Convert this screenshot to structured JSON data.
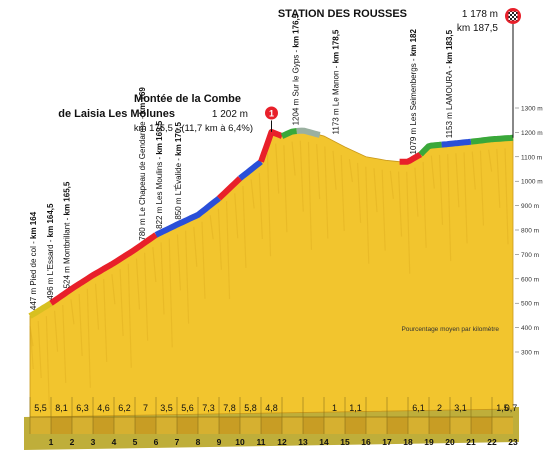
{
  "profile": {
    "start_point": {
      "x_km": 0.0,
      "elev_m": 447
    },
    "km_labels": [
      "1",
      "2",
      "3",
      "4",
      "5",
      "6",
      "7",
      "8",
      "9",
      "10",
      "11",
      "12",
      "13",
      "14",
      "15",
      "16",
      "17",
      "18",
      "19",
      "20",
      "21",
      "22",
      "23"
    ],
    "gradients": [
      "5,5",
      "8,1",
      "6,3",
      "4,6",
      "6,2",
      "7",
      "3,5",
      "5,6",
      "7,3",
      "7,8",
      "5,8",
      "4,8",
      "",
      "",
      "1",
      "1,1",
      "",
      "",
      "6,1",
      "2",
      "3,1",
      "",
      "1,5",
      "0,7"
    ],
    "elev_axis": {
      "values": [
        300,
        400,
        500,
        600,
        700,
        800,
        900,
        1000,
        1100,
        1200,
        1300
      ],
      "labels": [
        "300 m",
        "400 m",
        "500 m",
        "600 m",
        "700 m",
        "800 m",
        "900 m",
        "1000 m",
        "1100 m",
        "1200 m",
        "1300 m"
      ]
    },
    "points": [
      {
        "km": 0.0,
        "elev": 447
      },
      {
        "km": 1.0,
        "elev": 500
      },
      {
        "km": 2.0,
        "elev": 560
      },
      {
        "km": 3.0,
        "elev": 615
      },
      {
        "km": 4.0,
        "elev": 665
      },
      {
        "km": 5.0,
        "elev": 720
      },
      {
        "km": 6.0,
        "elev": 780
      },
      {
        "km": 7.0,
        "elev": 822
      },
      {
        "km": 8.0,
        "elev": 862
      },
      {
        "km": 9.0,
        "elev": 930
      },
      {
        "km": 10.0,
        "elev": 1012
      },
      {
        "km": 11.0,
        "elev": 1080
      },
      {
        "km": 11.5,
        "elev": 1202
      },
      {
        "km": 12.0,
        "elev": 1185
      },
      {
        "km": 12.5,
        "elev": 1204
      },
      {
        "km": 13.0,
        "elev": 1208
      },
      {
        "km": 14.0,
        "elev": 1185
      },
      {
        "km": 15.0,
        "elev": 1140
      },
      {
        "km": 16.0,
        "elev": 1100
      },
      {
        "km": 17.0,
        "elev": 1085
      },
      {
        "km": 17.6,
        "elev": 1080
      },
      {
        "km": 18.0,
        "elev": 1080
      },
      {
        "km": 18.6,
        "elev": 1110
      },
      {
        "km": 19.0,
        "elev": 1145
      },
      {
        "km": 20.0,
        "elev": 1153
      },
      {
        "km": 21.0,
        "elev": 1162
      },
      {
        "km": 22.0,
        "elev": 1172
      },
      {
        "km": 23.0,
        "elev": 1178
      }
    ],
    "ridge_segments": [
      {
        "from": 0.0,
        "to": 1.0,
        "color": "#d8c020"
      },
      {
        "from": 1.0,
        "to": 6.0,
        "color": "#e8202a"
      },
      {
        "from": 6.0,
        "to": 9.0,
        "color": "#2a4fd8"
      },
      {
        "from": 9.0,
        "to": 10.0,
        "color": "#e8202a"
      },
      {
        "from": 10.0,
        "to": 11.0,
        "color": "#2a4fd8"
      },
      {
        "from": 11.0,
        "to": 12.0,
        "color": "#e8202a"
      },
      {
        "from": 12.0,
        "to": 12.7,
        "color": "#3aa83a"
      },
      {
        "from": 12.7,
        "to": 13.8,
        "color": "#9ab0a0"
      },
      {
        "from": 17.6,
        "to": 18.6,
        "color": "#e8202a"
      },
      {
        "from": 18.6,
        "to": 19.6,
        "color": "#3aa83a"
      },
      {
        "from": 19.6,
        "to": 21.0,
        "color": "#2a4fd8"
      },
      {
        "from": 21.0,
        "to": 23.0,
        "color": "#3aa83a"
      }
    ],
    "legend_note": "Pourcentage moyen par kilomètre",
    "colors": {
      "fill": "#f2c52e",
      "fill_dark": "#d9a81c",
      "ground": "#bfae3a"
    }
  },
  "summit": {
    "title_line1": "Montée de la Combe",
    "title_line2": "de Laisia Les Molunes",
    "elev": "1 202 m",
    "km_line": "km 175,5 - (11,7 km à 6,4%)",
    "marker_icon": "category-1-climb-icon",
    "marker_color": "#e8202a",
    "km_pos": 11.5
  },
  "finish": {
    "title": "STATION DES ROUSSES",
    "elev": "1 178 m",
    "km": "km 187,5",
    "marker_icon": "checkered-flag-icon",
    "marker_color": "#e8202a",
    "km_pos": 23.0
  },
  "waypoints": [
    {
      "km_pos": 0.0,
      "elev_text": "447 m Pied de col -",
      "km_text": "km 164"
    },
    {
      "km_pos": 0.8,
      "elev_text": "496 m L'Essard -",
      "km_text": "km 164,5"
    },
    {
      "km_pos": 1.6,
      "elev_text": "524 m Montbrillant -",
      "km_text": "km 165,5"
    },
    {
      "km_pos": 5.2,
      "elev_text": "780 m Le Chapeau de Gendarme -",
      "km_text": "km 169"
    },
    {
      "km_pos": 6.0,
      "elev_text": "822 m Les Moulins -",
      "km_text": "km 169,5"
    },
    {
      "km_pos": 6.9,
      "elev_text": "850 m L'Évalide -",
      "km_text": "km 170,5"
    },
    {
      "km_pos": 12.5,
      "elev_text": "1204 m Sur le Gyps -",
      "km_text": "km 176,5"
    },
    {
      "km_pos": 14.4,
      "elev_text": "1173 m Le Manon -",
      "km_text": "km 178,5"
    },
    {
      "km_pos": 18.1,
      "elev_text": "1079 m Les Seimenbergs -",
      "km_text": "km 182"
    },
    {
      "km_pos": 19.8,
      "elev_text": "1153 m LAMOURA -",
      "km_text": "km 183,5"
    }
  ]
}
